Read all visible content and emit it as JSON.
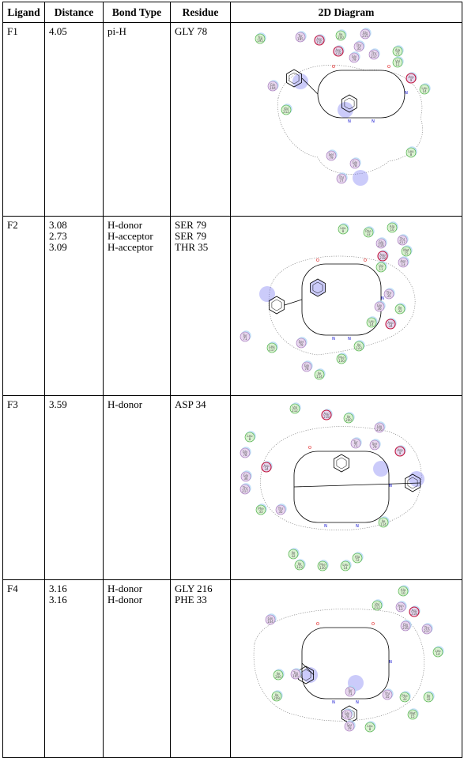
{
  "headers": {
    "ligand": "Ligand",
    "distance": "Distance",
    "bond_type": "Bond Type",
    "residue": "Residue",
    "diagram": "2D Diagram"
  },
  "rows": [
    {
      "ligand": "F1",
      "distances": [
        "4.05"
      ],
      "bond_types": [
        "pi-H"
      ],
      "residues": [
        "GLY  78"
      ],
      "diagram_residues": [
        {
          "name": "Trp",
          "num": "195",
          "kind": "green"
        },
        {
          "name": "Tyr",
          "num": "195",
          "kind": "purple"
        },
        {
          "name": "Asp",
          "num": "150",
          "kind": "red"
        },
        {
          "name": "Ile",
          "num": "200",
          "kind": "green"
        },
        {
          "name": "Gly",
          "num": "215",
          "kind": "purple"
        },
        {
          "name": "Thr",
          "num": "35",
          "kind": "purple"
        },
        {
          "name": "Asp",
          "num": "218",
          "kind": "red"
        },
        {
          "name": "Gly",
          "num": "79",
          "kind": "purple"
        },
        {
          "name": "Thr",
          "num": "217",
          "kind": "purple"
        },
        {
          "name": "Ala",
          "num": "72",
          "kind": "green"
        },
        {
          "name": "Val",
          "num": "11",
          "kind": "green"
        },
        {
          "name": "Gln",
          "num": "104",
          "kind": "purple"
        },
        {
          "name": "Asp",
          "num": "9",
          "kind": "red"
        },
        {
          "name": "Leu",
          "num": "14",
          "kind": "green"
        },
        {
          "name": "Val",
          "num": "212",
          "kind": "green"
        },
        {
          "name": "Ser",
          "num": "79",
          "kind": "purple"
        },
        {
          "name": "Gly",
          "num": "78",
          "kind": "purple"
        },
        {
          "name": "Leu",
          "num": "8",
          "kind": "green"
        },
        {
          "name": "Thr",
          "num": "77",
          "kind": "purple"
        }
      ]
    },
    {
      "ligand": "F2",
      "distances": [
        "3.08",
        "2.73",
        "3.09"
      ],
      "bond_types": [
        "H-donor",
        "H-acceptor",
        "H-acceptor"
      ],
      "residues": [
        "SER  79",
        "SER  79",
        "THR  35"
      ],
      "diagram_residues": [
        {
          "name": "Leu",
          "num": "8",
          "kind": "green"
        },
        {
          "name": "Phe",
          "num": "33",
          "kind": "green"
        },
        {
          "name": "Ala",
          "num": "10",
          "kind": "green"
        },
        {
          "name": "Thr",
          "num": "217",
          "kind": "purple"
        },
        {
          "name": "Gly",
          "num": "216",
          "kind": "purple"
        },
        {
          "name": "Met",
          "num": "15",
          "kind": "green"
        },
        {
          "name": "Asp",
          "num": "218",
          "kind": "red"
        },
        {
          "name": "Asn",
          "num": "13",
          "kind": "purple"
        },
        {
          "name": "Val",
          "num": "11",
          "kind": "green"
        },
        {
          "name": "Thr",
          "num": "35",
          "kind": "purple"
        },
        {
          "name": "Gly",
          "num": "36",
          "kind": "purple"
        },
        {
          "name": "Ile",
          "num": "32",
          "kind": "green"
        },
        {
          "name": "Leu",
          "num": "14",
          "kind": "green"
        },
        {
          "name": "Asp",
          "num": "34",
          "kind": "red"
        },
        {
          "name": "Tyr",
          "num": "71",
          "kind": "purple"
        },
        {
          "name": "Leu",
          "num": "117",
          "kind": "green"
        },
        {
          "name": "Ser",
          "num": "79",
          "kind": "purple"
        },
        {
          "name": "Ile",
          "num": "123",
          "kind": "green"
        },
        {
          "name": "Gly",
          "num": "78",
          "kind": "purple"
        },
        {
          "name": "Phe",
          "num": "130",
          "kind": "green"
        },
        {
          "name": "Ile",
          "num": "114",
          "kind": "green"
        }
      ]
    },
    {
      "ligand": "F3",
      "distances": [
        "3.59"
      ],
      "bond_types": [
        "H-donor"
      ],
      "residues": [
        "ASP  34"
      ],
      "diagram_residues": [
        {
          "name": "Val",
          "num": "212",
          "kind": "green"
        },
        {
          "name": "Asp",
          "num": "218",
          "kind": "red"
        },
        {
          "name": "Ile",
          "num": "200",
          "kind": "green"
        },
        {
          "name": "Leu",
          "num": "8",
          "kind": "green"
        },
        {
          "name": "Gly",
          "num": "216",
          "kind": "purple"
        },
        {
          "name": "Gly",
          "num": "78",
          "kind": "purple"
        },
        {
          "name": "Tyr",
          "num": "71",
          "kind": "purple"
        },
        {
          "name": "Ser",
          "num": "79",
          "kind": "purple"
        },
        {
          "name": "Gly",
          "num": "36",
          "kind": "purple"
        },
        {
          "name": "Asp",
          "num": "9",
          "kind": "red"
        },
        {
          "name": "Asp",
          "num": "34",
          "kind": "red"
        },
        {
          "name": "Thr",
          "num": "217",
          "kind": "purple"
        },
        {
          "name": "Phe",
          "num": "33",
          "kind": "green"
        },
        {
          "name": "Thr",
          "num": "35",
          "kind": "purple"
        },
        {
          "name": "Ile",
          "num": "32",
          "kind": "green"
        },
        {
          "name": "Ile",
          "num": "114",
          "kind": "green"
        },
        {
          "name": "Ala",
          "num": "72",
          "kind": "green"
        },
        {
          "name": "Ile",
          "num": "123",
          "kind": "green"
        },
        {
          "name": "Phe",
          "num": "130",
          "kind": "green"
        },
        {
          "name": "Leu",
          "num": "14",
          "kind": "green"
        }
      ]
    },
    {
      "ligand": "F4",
      "distances": [
        "3.16",
        "3.16"
      ],
      "bond_types": [
        "H-donor",
        "H-donor"
      ],
      "residues": [
        "GLY  216",
        "PHE  33"
      ],
      "diagram_residues": [
        {
          "name": "Ala",
          "num": "10",
          "kind": "green"
        },
        {
          "name": "Val",
          "num": "212",
          "kind": "green"
        },
        {
          "name": "Asn",
          "num": "13",
          "kind": "purple"
        },
        {
          "name": "Asp",
          "num": "218",
          "kind": "red"
        },
        {
          "name": "Gln",
          "num": "104",
          "kind": "purple"
        },
        {
          "name": "Gly",
          "num": "216",
          "kind": "purple"
        },
        {
          "name": "Thr",
          "num": "217",
          "kind": "purple"
        },
        {
          "name": "Leu",
          "num": "14",
          "kind": "green"
        },
        {
          "name": "Ile",
          "num": "200",
          "kind": "green"
        },
        {
          "name": "Trp",
          "num": "195",
          "kind": "purple"
        },
        {
          "name": "Thr",
          "num": "35",
          "kind": "purple"
        },
        {
          "name": "Phe",
          "num": "33",
          "kind": "green"
        },
        {
          "name": "Ile",
          "num": "32",
          "kind": "green"
        },
        {
          "name": "Ile",
          "num": "209",
          "kind": "green"
        },
        {
          "name": "Tyr",
          "num": "71",
          "kind": "purple"
        },
        {
          "name": "Met",
          "num": "15",
          "kind": "green"
        },
        {
          "name": "Gly",
          "num": "78",
          "kind": "purple"
        },
        {
          "name": "Ser",
          "num": "79",
          "kind": "purple"
        },
        {
          "name": "Leu",
          "num": "8",
          "kind": "green"
        }
      ]
    }
  ],
  "colors": {
    "green_fill": "#d9f2d0",
    "green_stroke": "#3aa635",
    "purple_fill": "#e8d7ef",
    "purple_stroke": "#9b6fb4",
    "red_fill": "#e8d7ef",
    "red_stroke": "#c0143c",
    "hbond": "#2aa02a",
    "glow": "#6a6af0"
  }
}
